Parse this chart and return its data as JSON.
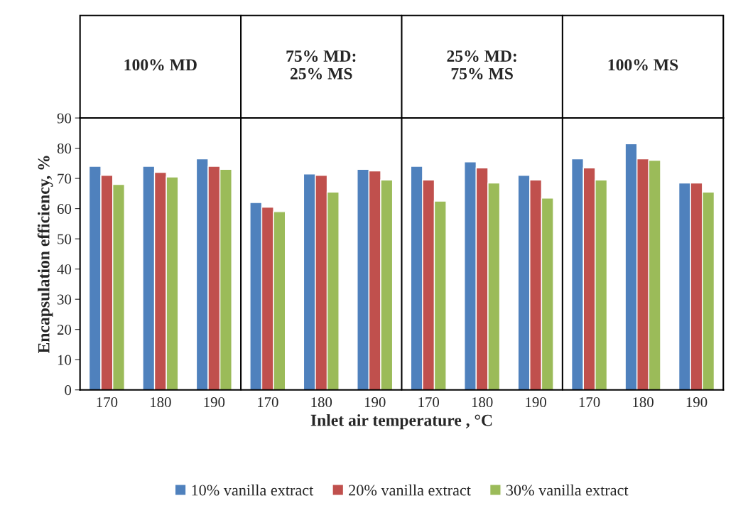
{
  "chart_data": {
    "type": "bar",
    "categories": [
      "170",
      "180",
      "190",
      "170",
      "180",
      "190",
      "170",
      "180",
      "190",
      "170",
      "180",
      "190"
    ],
    "annotations": [
      "100% MD",
      "75% MD:\n25% MS",
      "25% MD:\n75% MS",
      "100% MS"
    ],
    "series": [
      {
        "name": "10% vanilla extract",
        "color": "#4f81bd",
        "values": [
          74,
          74,
          76.5,
          62,
          71.5,
          73,
          74,
          75.5,
          71,
          76.5,
          81.5,
          68.5
        ]
      },
      {
        "name": "20% vanilla extract",
        "color": "#c0504d",
        "values": [
          71,
          72,
          74,
          60.5,
          71,
          72.5,
          69.5,
          73.5,
          69.5,
          73.5,
          76.5,
          68.5
        ]
      },
      {
        "name": "30% vanilla extract",
        "color": "#9bbb59",
        "values": [
          68,
          70.5,
          73,
          59,
          65.5,
          69.5,
          62.5,
          68.5,
          63.5,
          69.5,
          76,
          65.5
        ]
      }
    ],
    "xlabel": "Inlet air temperature , °C",
    "ylabel": "Encapsulation efficiency, %",
    "ylim": [
      0,
      90
    ],
    "yticks": [
      0,
      10,
      20,
      30,
      40,
      50,
      60,
      70,
      80,
      90
    ],
    "grid": false,
    "legend": "bottom"
  }
}
